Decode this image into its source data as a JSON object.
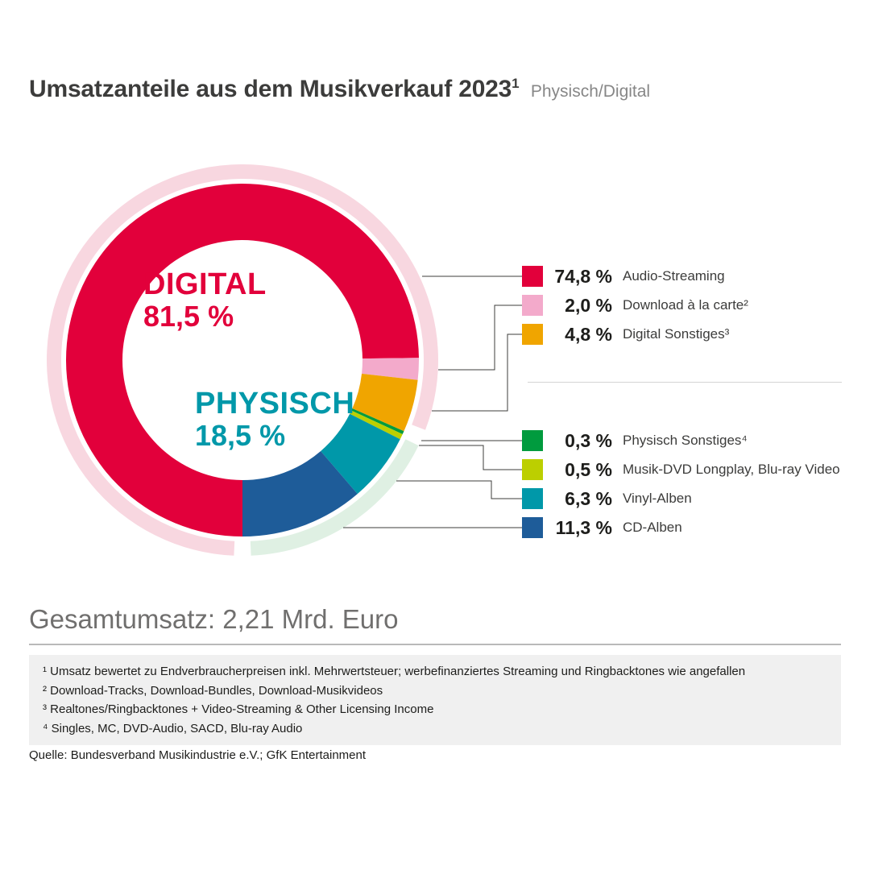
{
  "header": {
    "title": "Umsatzanteile aus dem Musikverkauf 2023",
    "title_sup": "1",
    "subtitle": "Physisch/Digital"
  },
  "chart_data": {
    "type": "pie",
    "variant": "donut-with-group-ring",
    "title": "Umsatzanteile aus dem Musikverkauf 2023",
    "unit": "%",
    "start_angle_deg": 180,
    "segments": [
      {
        "label": "Audio-Streaming",
        "value": 74.8,
        "display": "74,8 %",
        "color": "#e2003b",
        "group": "digital"
      },
      {
        "label": "Download à la carte²",
        "value": 2.0,
        "display": "2,0 %",
        "color": "#f3aacb",
        "group": "digital"
      },
      {
        "label": "Digital Sonstiges³",
        "value": 4.8,
        "display": "4,8 %",
        "color": "#f0a500",
        "group": "digital"
      },
      {
        "label": "Physisch Sonstiges⁴",
        "value": 0.3,
        "display": "0,3 %",
        "color": "#009b3e",
        "group": "physisch"
      },
      {
        "label": "Musik-DVD Longplay, Blu-ray Video",
        "value": 0.5,
        "display": "0,5 %",
        "color": "#bccf00",
        "group": "physisch"
      },
      {
        "label": "Vinyl-Alben",
        "value": 6.3,
        "display": "6,3 %",
        "color": "#0098a9",
        "group": "physisch"
      },
      {
        "label": "CD-Alben",
        "value": 11.3,
        "display": "11,3 %",
        "color": "#1e5c99",
        "group": "physisch"
      }
    ],
    "groups": [
      {
        "name": "DIGITAL",
        "display": "81,5 %",
        "value": 81.5,
        "color": "#e2003b",
        "ring_color": "#f8d7e0"
      },
      {
        "name": "PHYSISCH",
        "display": "18,5 %",
        "value": 18.5,
        "color": "#0098a9",
        "ring_color": "#dff0e3"
      }
    ]
  },
  "total": {
    "text": "Gesamtumsatz: 2,21 Mrd. Euro"
  },
  "footnotes": [
    "¹ Umsatz bewertet zu Endverbraucherpreisen inkl. Mehrwertsteuer; werbefinanziertes Streaming und Ringbacktones wie angefallen",
    "² Download-Tracks, Download-Bundles, Download-Musikvideos",
    "³ Realtones/Ringbacktones + Video-Streaming & Other Licensing Income",
    "⁴ Singles, MC, DVD-Audio, SACD, Blu-ray Audio"
  ],
  "source": "Quelle: Bundesverband Musikindustrie e.V.; GfK Entertainment"
}
